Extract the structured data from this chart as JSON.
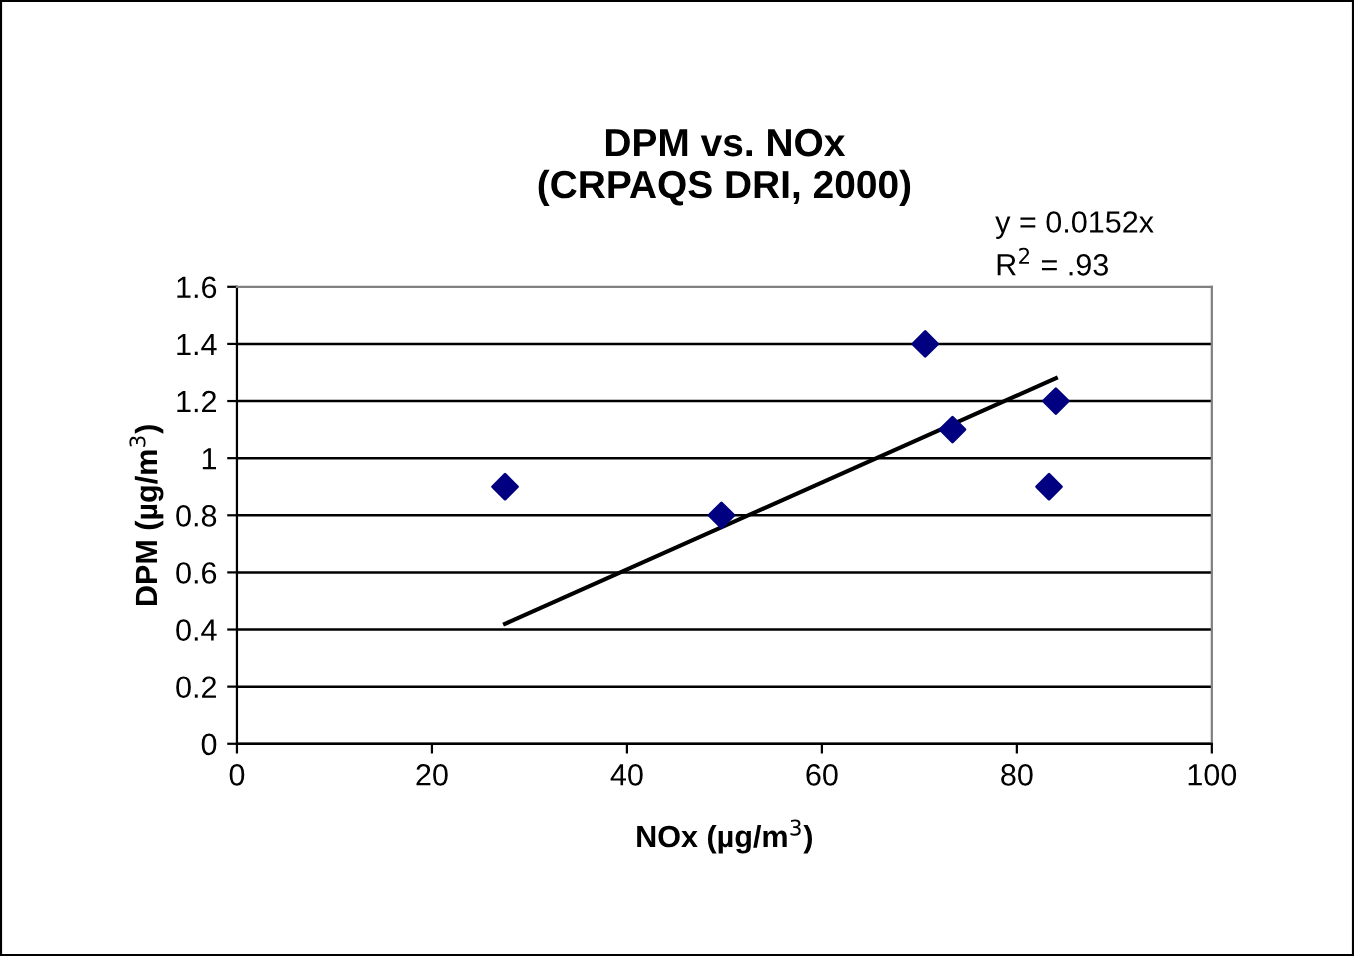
{
  "chart_data": {
    "type": "scatter",
    "title": "DPM vs. NOx\n(CRPAQS DRI, 2000)",
    "xlabel": "NOx (µg/m$^{3}$)",
    "ylabel": "DPM (µg/m$^{3}$)",
    "x": [
      27.5,
      49.7,
      70.6,
      73.4,
      83.3,
      84.0
    ],
    "series": [
      {
        "color": "#000080",
        "marker": "diamond",
        "values": [
          0.9,
          0.8,
          1.4,
          1.1,
          0.9,
          1.2
        ]
      },
      {
        "type": "line",
        "color": "#000000",
        "marker": "none",
        "line_style": "solid",
        "x": [
          27.5,
          84.0
        ],
        "values": [
          0.42,
          1.28
        ]
      }
    ],
    "annotations": [
      "y = 0.0152x",
      "R$^{2}$ = .93"
    ],
    "xlim": [
      0,
      100
    ],
    "xticks": [
      0,
      20,
      40,
      60,
      80,
      100
    ],
    "ylim": [
      0,
      1.6
    ],
    "yticks": [
      0,
      0.2,
      0.4,
      0.6,
      0.8,
      1,
      1.2,
      1.4,
      1.6
    ],
    "grid": "y",
    "legend": false
  }
}
